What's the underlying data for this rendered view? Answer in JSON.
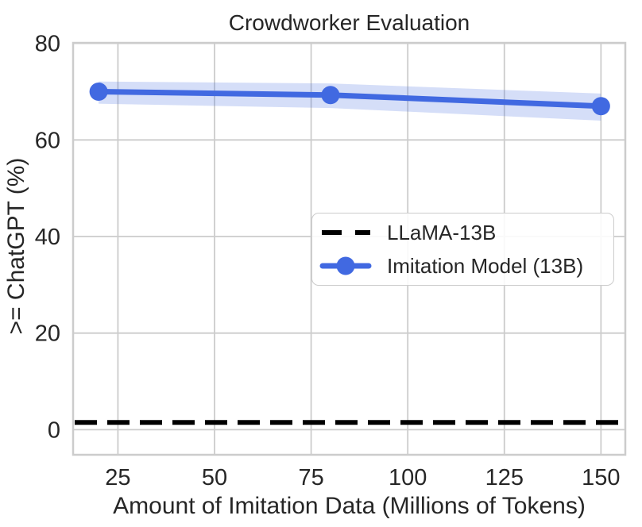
{
  "figure": {
    "background": "#ffffff",
    "text_color": "#262626",
    "grid_color": "#cccccc"
  },
  "chart_data": {
    "type": "line",
    "title": "Crowdworker Evaluation",
    "xlabel": "Amount of Imitation Data (Millions of Tokens)",
    "ylabel": ">= ChatGPT (%)",
    "xlim": [
      13.4,
      156.3
    ],
    "ylim": [
      -5.2,
      80.1
    ],
    "x_ticks": [
      25,
      50,
      75,
      100,
      125,
      150
    ],
    "y_ticks": [
      0,
      20,
      40,
      60,
      80
    ],
    "grid": true,
    "legend_position": "center-right-inside",
    "series": [
      {
        "name": "LLaMA-13B",
        "kind": "hline",
        "value": 1.5,
        "color": "#000000",
        "style": "dashed",
        "linewidth": 6
      },
      {
        "name": "Imitation Model (13B)",
        "kind": "line-markers-band",
        "x": [
          20,
          80,
          150
        ],
        "y": [
          70.0,
          69.3,
          67.0
        ],
        "band_upper": [
          72.1,
          71.7,
          69.6
        ],
        "band_lower": [
          67.5,
          66.6,
          64.0
        ],
        "color": "#4169E1",
        "band_alpha": 0.22,
        "linewidth": 7,
        "marker": "circle",
        "marker_radius": 11.5
      }
    ],
    "legend": [
      {
        "label": "LLaMA-13B",
        "swatch": "black-dashed-line"
      },
      {
        "label": "Imitation Model (13B)",
        "swatch": "blue-line-dot"
      }
    ]
  }
}
